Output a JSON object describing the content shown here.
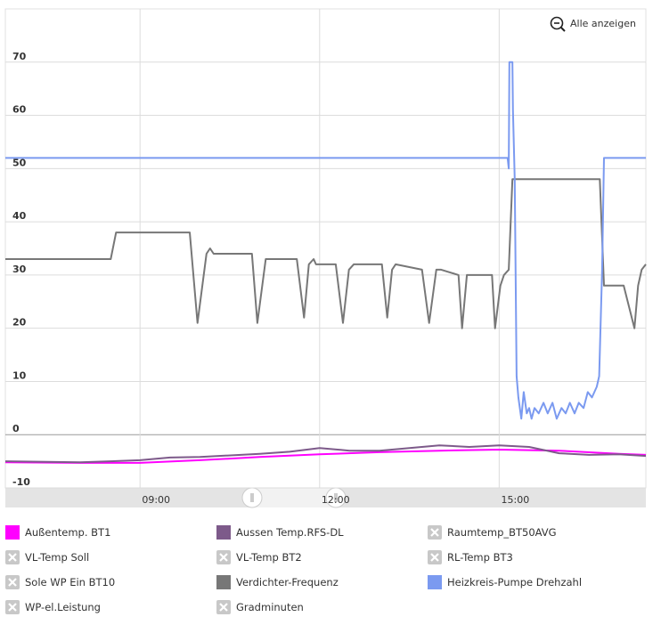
{
  "chart_data": {
    "type": "line",
    "reset_zoom_label": "Alle anzeigen",
    "xlim": [
      6.75,
      17.45
    ],
    "xticks": [
      {
        "value": 9,
        "label": "09:00"
      },
      {
        "value": 12,
        "label": "12:00"
      },
      {
        "value": 15,
        "label": "15:00"
      }
    ],
    "ylim": [
      -10,
      80
    ],
    "yticks": [
      -10,
      0,
      10,
      20,
      30,
      40,
      50,
      60,
      70
    ],
    "grid": true,
    "series": [
      {
        "name": "Außentemp. BT1",
        "color": "#ff00ff",
        "x": [
          6.75,
          8,
          9,
          10,
          11,
          12,
          13,
          14,
          15,
          16,
          17,
          17.45
        ],
        "values": [
          -5.2,
          -5.3,
          -5.3,
          -4.8,
          -4.2,
          -3.7,
          -3.3,
          -3.0,
          -2.8,
          -3.0,
          -3.6,
          -3.8
        ]
      },
      {
        "name": "Aussen Temp.RFS-DL",
        "color": "#7d5a8a",
        "x": [
          6.75,
          8,
          9,
          9.5,
          10,
          11,
          11.5,
          12,
          12.5,
          13,
          13.5,
          14,
          14.5,
          15,
          15.5,
          16,
          16.5,
          17,
          17.45
        ],
        "values": [
          -5.0,
          -5.2,
          -4.8,
          -4.3,
          -4.2,
          -3.6,
          -3.2,
          -2.5,
          -3.0,
          -3.0,
          -2.5,
          -2.0,
          -2.3,
          -2.0,
          -2.3,
          -3.5,
          -3.8,
          -3.7,
          -4.0
        ]
      },
      {
        "name": "Raumtemp_BT50AVG",
        "visible": false
      },
      {
        "name": "VL-Temp Soll",
        "visible": false
      },
      {
        "name": "VL-Temp BT2",
        "visible": false
      },
      {
        "name": "RL-Temp BT3",
        "visible": false
      },
      {
        "name": "Sole WP Ein BT10",
        "visible": false
      },
      {
        "name": "Verdichter-Frequenz",
        "color": "#777777",
        "x": [
          6.75,
          8.51,
          8.6,
          9.83,
          9.96,
          10.11,
          10.17,
          10.23,
          10.87,
          10.96,
          11.1,
          11.62,
          11.74,
          11.82,
          11.9,
          11.94,
          12.27,
          12.39,
          12.49,
          12.57,
          13.04,
          13.13,
          13.21,
          13.27,
          13.71,
          13.83,
          13.95,
          14.03,
          14.32,
          14.38,
          14.46,
          14.52,
          14.88,
          14.93,
          15.02,
          15.08,
          15.16,
          15.22,
          15.26,
          16.68,
          16.75,
          17.08,
          17.26,
          17.32,
          17.38,
          17.45
        ],
        "values": [
          33,
          33,
          38,
          38,
          21,
          34,
          35,
          34,
          34,
          21,
          33,
          33,
          22,
          32,
          33,
          32,
          32,
          21,
          31,
          32,
          32,
          22,
          31,
          32,
          31,
          21,
          31,
          31,
          30,
          20,
          30,
          30,
          30,
          20,
          28,
          30,
          31,
          48,
          48,
          48,
          28,
          28,
          20,
          28,
          31,
          32
        ]
      },
      {
        "name": "Heizkreis-Pumpe Drehzahl",
        "color": "#7b9af0",
        "x": [
          6.75,
          15.14,
          15.16,
          15.17,
          15.22,
          15.23,
          15.26,
          15.29,
          15.32,
          15.37,
          15.41,
          15.46,
          15.5,
          15.54,
          15.59,
          15.66,
          15.74,
          15.81,
          15.89,
          15.96,
          16.04,
          16.11,
          16.18,
          16.26,
          16.33,
          16.41,
          16.48,
          16.55,
          16.63,
          16.67,
          16.72,
          16.75,
          17.45
        ],
        "values": [
          52,
          52,
          50,
          70,
          70,
          61,
          48,
          11,
          7,
          3,
          8,
          4,
          5,
          3,
          5,
          4,
          6,
          4,
          6,
          3,
          5,
          4,
          6,
          4,
          6,
          5,
          8,
          7,
          9,
          11,
          31,
          52,
          52
        ]
      },
      {
        "name": "WP-el.Leistung",
        "visible": false
      },
      {
        "name": "Gradminuten",
        "visible": false
      }
    ]
  }
}
